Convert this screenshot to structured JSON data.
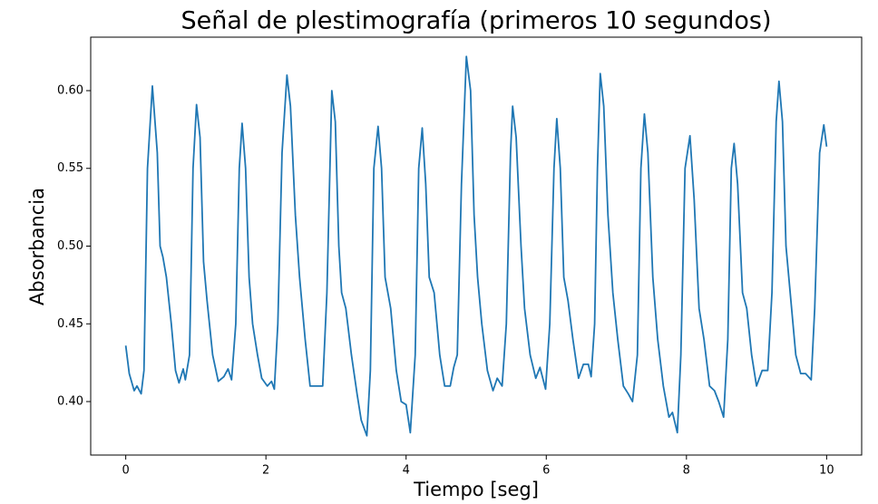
{
  "chart_data": {
    "type": "line",
    "title": "Señal de plestimografía (primeros 10 segundos)",
    "x_label": "Tiempo [seg]",
    "y_label": "Absorbancia",
    "color": "#1f77b4",
    "grid": false,
    "xlim": [
      -0.5,
      10.5
    ],
    "ylim": [
      0.3656,
      0.6344
    ],
    "xticks": [
      0,
      2,
      4,
      6,
      8,
      10
    ],
    "yticks": [
      {
        "value": 0.4,
        "label": "0.40"
      },
      0.45,
      {
        "value": 0.5,
        "label": "0.50"
      },
      0.55,
      {
        "value": 0.6,
        "label": "0.60"
      }
    ],
    "x": [
      0,
      0.05,
      0.12,
      0.16,
      0.22,
      0.26,
      0.31,
      0.38,
      0.45,
      0.49,
      0.53,
      0.58,
      0.65,
      0.71,
      0.76,
      0.82,
      0.85,
      0.91,
      0.96,
      1.01,
      1.06,
      1.11,
      1.16,
      1.24,
      1.32,
      1.4,
      1.46,
      1.51,
      1.57,
      1.62,
      1.66,
      1.71,
      1.76,
      1.81,
      1.88,
      1.94,
      2.02,
      2.08,
      2.12,
      2.17,
      2.23,
      2.3,
      2.35,
      2.42,
      2.48,
      2.56,
      2.63,
      2.72,
      2.81,
      2.87,
      2.94,
      2.99,
      3.04,
      3.08,
      3.14,
      3.22,
      3.3,
      3.36,
      3.44,
      3.49,
      3.54,
      3.6,
      3.65,
      3.7,
      3.78,
      3.86,
      3.93,
      4.0,
      4.06,
      4.13,
      4.18,
      4.23,
      4.28,
      4.33,
      4.4,
      4.48,
      4.55,
      4.63,
      4.68,
      4.73,
      4.79,
      4.86,
      4.92,
      4.97,
      5.02,
      5.08,
      5.16,
      5.24,
      5.3,
      5.37,
      5.43,
      5.49,
      5.52,
      5.57,
      5.64,
      5.69,
      5.77,
      5.85,
      5.91,
      5.99,
      6.05,
      6.11,
      6.15,
      6.2,
      6.25,
      6.31,
      6.38,
      6.46,
      6.53,
      6.6,
      6.64,
      6.69,
      6.73,
      6.77,
      6.82,
      6.88,
      6.95,
      7.02,
      7.1,
      7.17,
      7.23,
      7.3,
      7.35,
      7.4,
      7.45,
      7.52,
      7.59,
      7.67,
      7.75,
      7.8,
      7.87,
      7.92,
      7.98,
      8.05,
      8.11,
      8.18,
      8.25,
      8.33,
      8.4,
      8.46,
      8.53,
      8.59,
      8.64,
      8.68,
      8.73,
      8.8,
      8.86,
      8.93,
      9.0,
      9.08,
      9.16,
      9.22,
      9.28,
      9.32,
      9.37,
      9.42,
      9.5,
      9.56,
      9.63,
      9.7,
      9.78,
      9.83,
      9.9,
      9.96,
      10.0
    ],
    "values": [
      0.436,
      0.418,
      0.407,
      0.41,
      0.405,
      0.42,
      0.55,
      0.603,
      0.56,
      0.5,
      0.493,
      0.48,
      0.45,
      0.42,
      0.412,
      0.421,
      0.414,
      0.43,
      0.55,
      0.591,
      0.57,
      0.49,
      0.465,
      0.43,
      0.413,
      0.416,
      0.421,
      0.414,
      0.45,
      0.55,
      0.579,
      0.55,
      0.48,
      0.45,
      0.43,
      0.415,
      0.41,
      0.413,
      0.408,
      0.45,
      0.56,
      0.61,
      0.59,
      0.52,
      0.48,
      0.44,
      0.41,
      0.41,
      0.41,
      0.47,
      0.6,
      0.58,
      0.5,
      0.47,
      0.46,
      0.43,
      0.405,
      0.388,
      0.378,
      0.42,
      0.55,
      0.577,
      0.55,
      0.48,
      0.46,
      0.42,
      0.4,
      0.398,
      0.38,
      0.43,
      0.55,
      0.576,
      0.54,
      0.48,
      0.47,
      0.43,
      0.41,
      0.41,
      0.422,
      0.43,
      0.54,
      0.622,
      0.6,
      0.52,
      0.48,
      0.45,
      0.42,
      0.407,
      0.415,
      0.41,
      0.45,
      0.56,
      0.59,
      0.57,
      0.5,
      0.46,
      0.43,
      0.415,
      0.422,
      0.408,
      0.45,
      0.55,
      0.582,
      0.55,
      0.48,
      0.465,
      0.44,
      0.415,
      0.424,
      0.424,
      0.416,
      0.45,
      0.55,
      0.611,
      0.59,
      0.52,
      0.47,
      0.44,
      0.41,
      0.405,
      0.4,
      0.43,
      0.55,
      0.585,
      0.56,
      0.48,
      0.44,
      0.41,
      0.39,
      0.393,
      0.38,
      0.43,
      0.55,
      0.571,
      0.53,
      0.46,
      0.44,
      0.41,
      0.407,
      0.4,
      0.39,
      0.44,
      0.55,
      0.566,
      0.54,
      0.47,
      0.46,
      0.43,
      0.41,
      0.42,
      0.42,
      0.47,
      0.58,
      0.606,
      0.58,
      0.5,
      0.46,
      0.43,
      0.418,
      0.418,
      0.414,
      0.46,
      0.56,
      0.578,
      0.564
    ]
  }
}
